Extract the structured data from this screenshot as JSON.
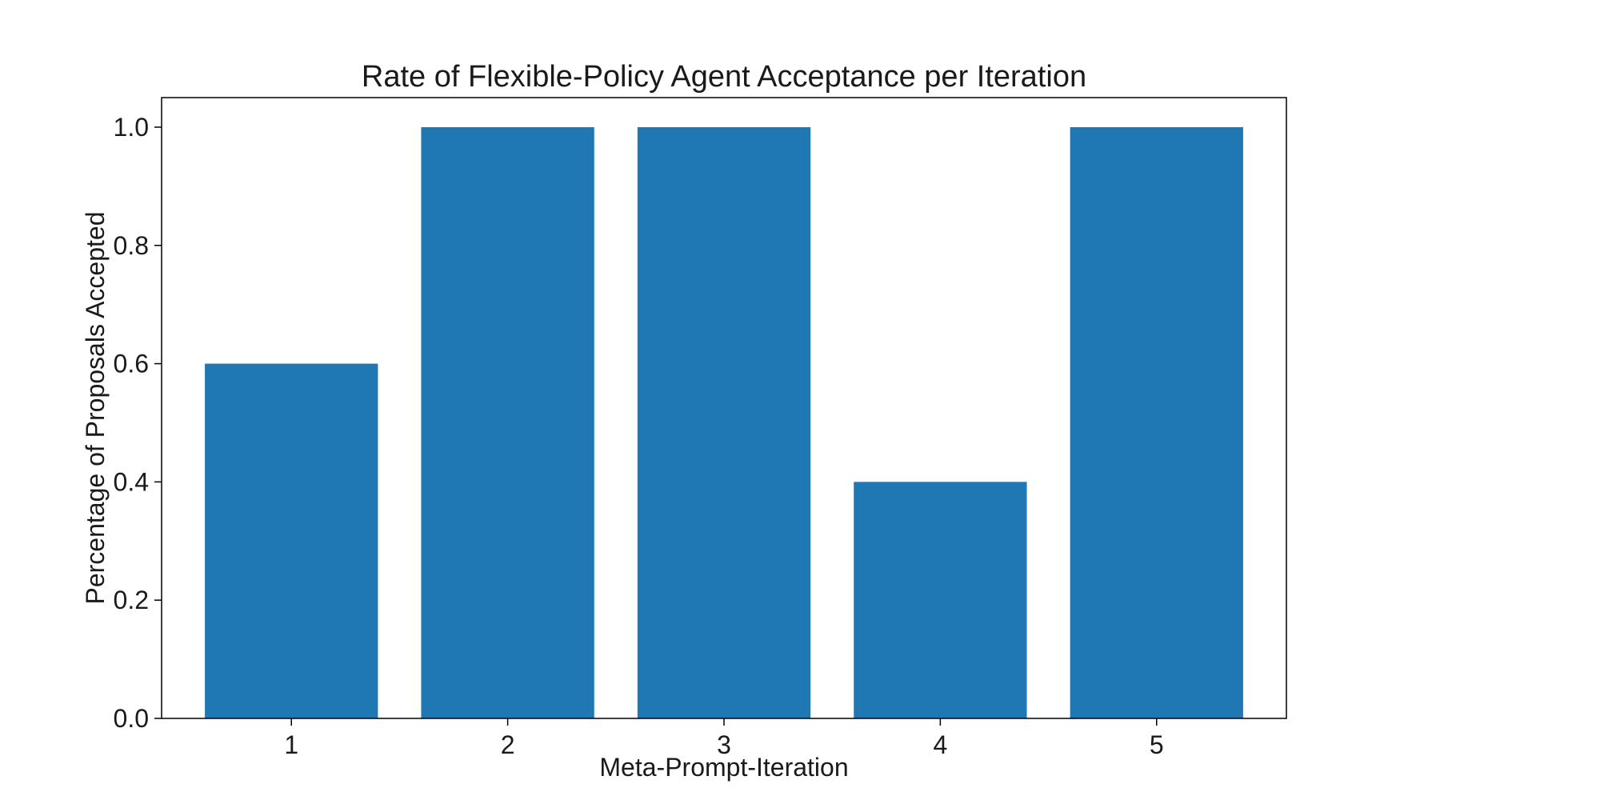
{
  "chart_data": {
    "type": "bar",
    "title": "Rate of Flexible-Policy Agent Acceptance per Iteration",
    "xlabel": "Meta-Prompt-Iteration",
    "ylabel": "Percentage of Proposals Accepted",
    "categories": [
      "1",
      "2",
      "3",
      "4",
      "5"
    ],
    "values": [
      0.6,
      1.0,
      1.0,
      0.4,
      1.0
    ],
    "ylim": [
      0,
      1.05
    ],
    "yticks": [
      "0.0",
      "0.2",
      "0.4",
      "0.6",
      "0.8",
      "1.0"
    ],
    "grid": false,
    "legend": "none",
    "bar_color": "#1f77b4"
  }
}
